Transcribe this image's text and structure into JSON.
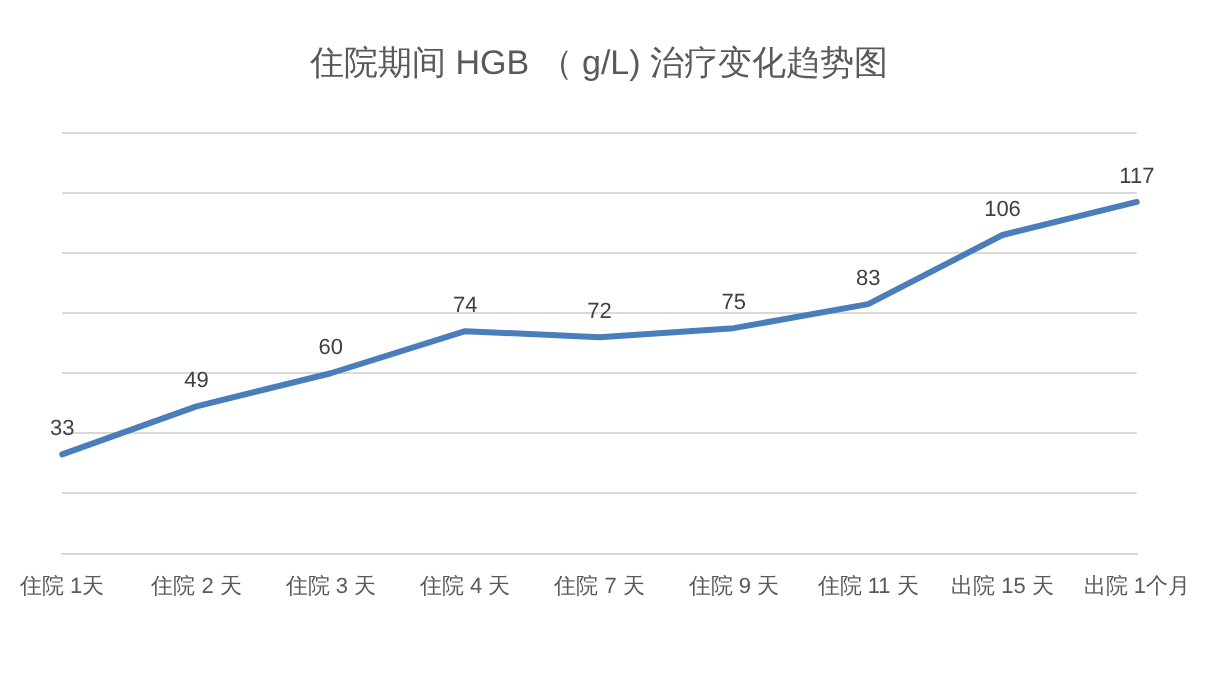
{
  "chart_data": {
    "type": "line",
    "title": "住院期间 HGB （ g/L) 治疗变化趋势图",
    "categories": [
      "住院 1天",
      "住院 2 天",
      "住院 3 天",
      "住院 4 天",
      "住院 7 天",
      "住院 9 天",
      "住院 11 天",
      "出院 15 天",
      "出院 1个月"
    ],
    "series": [
      {
        "color": "#4a7ebb",
        "values": [
          33,
          49,
          60,
          74,
          72,
          75,
          83,
          106,
          117
        ]
      }
    ],
    "ylim": [
      0,
      140
    ],
    "yticks": [
      0,
      20,
      40,
      60,
      80,
      100,
      120,
      140
    ],
    "grid": "y",
    "tick_labels": "x",
    "data_labels": true,
    "legend": false,
    "marker": "none"
  }
}
